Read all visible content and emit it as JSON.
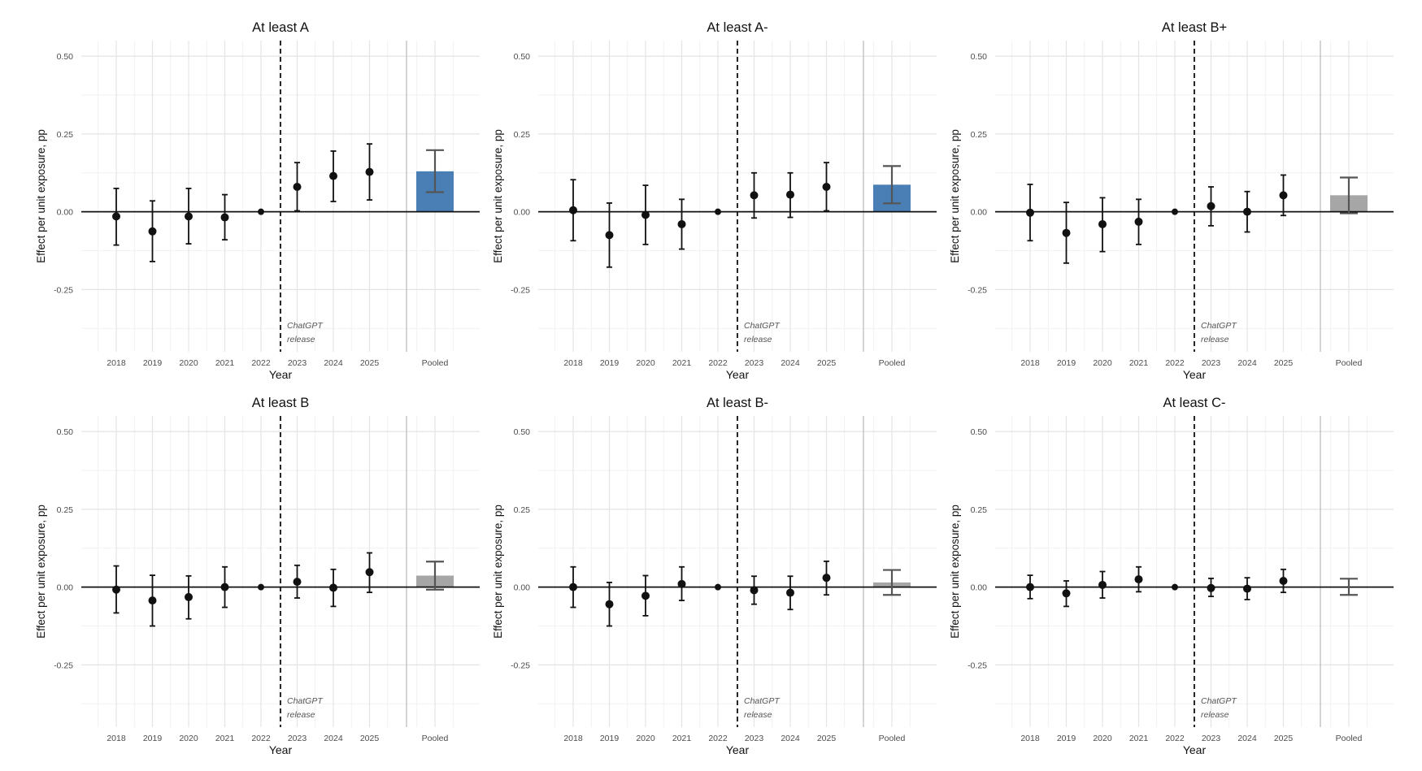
{
  "chart_data": [
    {
      "type": "scatter",
      "title": "At least A",
      "xlabel": "Year",
      "ylabel": "Effect per unit exposure, pp",
      "categories": [
        "2018",
        "2019",
        "2020",
        "2021",
        "2022",
        "2023",
        "2024",
        "2025"
      ],
      "ylim": [
        -0.45,
        0.55
      ],
      "yticks": [
        "0.50",
        "0.25",
        "0.00",
        "-0.25"
      ],
      "estimates": [
        -0.015,
        -0.063,
        -0.015,
        -0.018,
        0.0,
        0.08,
        0.115,
        0.128
      ],
      "ci_low": [
        -0.107,
        -0.16,
        -0.103,
        -0.09,
        0.0,
        0.003,
        0.033,
        0.038
      ],
      "ci_high": [
        0.075,
        0.035,
        0.075,
        0.055,
        0.0,
        0.158,
        0.195,
        0.218
      ],
      "pooled": {
        "label": "Pooled",
        "value": 0.13,
        "ci_low": 0.063,
        "ci_high": 0.198,
        "color": "#4A7FB5"
      },
      "vline_label": [
        "ChatGPT",
        "release"
      ],
      "grid": true
    },
    {
      "type": "scatter",
      "title": "At least A-",
      "xlabel": "Year",
      "ylabel": "Effect per unit exposure, pp",
      "categories": [
        "2018",
        "2019",
        "2020",
        "2021",
        "2022",
        "2023",
        "2024",
        "2025"
      ],
      "ylim": [
        -0.45,
        0.55
      ],
      "yticks": [
        "0.50",
        "0.25",
        "0.00",
        "-0.25"
      ],
      "estimates": [
        0.005,
        -0.075,
        -0.01,
        -0.04,
        0.0,
        0.053,
        0.055,
        0.08
      ],
      "ci_low": [
        -0.093,
        -0.178,
        -0.105,
        -0.12,
        0.0,
        -0.02,
        -0.018,
        0.003
      ],
      "ci_high": [
        0.103,
        0.028,
        0.085,
        0.04,
        0.0,
        0.125,
        0.125,
        0.158
      ],
      "pooled": {
        "label": "Pooled",
        "value": 0.087,
        "ci_low": 0.027,
        "ci_high": 0.147,
        "color": "#4A7FB5"
      },
      "vline_label": [
        "ChatGPT",
        "release"
      ],
      "grid": true
    },
    {
      "type": "scatter",
      "title": "At least B+",
      "xlabel": "Year",
      "ylabel": "Effect per unit exposure, pp",
      "categories": [
        "2018",
        "2019",
        "2020",
        "2021",
        "2022",
        "2023",
        "2024",
        "2025"
      ],
      "ylim": [
        -0.45,
        0.55
      ],
      "yticks": [
        "0.50",
        "0.25",
        "0.00",
        "-0.25"
      ],
      "estimates": [
        -0.003,
        -0.068,
        -0.04,
        -0.032,
        0.0,
        0.018,
        0.0,
        0.053
      ],
      "ci_low": [
        -0.093,
        -0.165,
        -0.128,
        -0.105,
        0.0,
        -0.045,
        -0.065,
        -0.012
      ],
      "ci_high": [
        0.088,
        0.03,
        0.045,
        0.04,
        0.0,
        0.08,
        0.065,
        0.118
      ],
      "pooled": {
        "label": "Pooled",
        "value": 0.053,
        "ci_low": -0.005,
        "ci_high": 0.11,
        "color": "#A6A6A6"
      },
      "vline_label": [
        "ChatGPT",
        "release"
      ],
      "grid": true
    },
    {
      "type": "scatter",
      "title": "At least B",
      "xlabel": "Year",
      "ylabel": "Effect per unit exposure, pp",
      "categories": [
        "2018",
        "2019",
        "2020",
        "2021",
        "2022",
        "2023",
        "2024",
        "2025"
      ],
      "ylim": [
        -0.45,
        0.55
      ],
      "yticks": [
        "0.50",
        "0.25",
        "0.00",
        "-0.25"
      ],
      "estimates": [
        -0.008,
        -0.043,
        -0.032,
        0.0,
        0.0,
        0.017,
        -0.002,
        0.048
      ],
      "ci_low": [
        -0.083,
        -0.125,
        -0.102,
        -0.065,
        0.0,
        -0.035,
        -0.062,
        -0.017
      ],
      "ci_high": [
        0.068,
        0.038,
        0.036,
        0.065,
        0.0,
        0.07,
        0.057,
        0.11
      ],
      "pooled": {
        "label": "Pooled",
        "value": 0.037,
        "ci_low": -0.008,
        "ci_high": 0.082,
        "color": "#A6A6A6"
      },
      "vline_label": [
        "ChatGPT",
        "release"
      ],
      "grid": true
    },
    {
      "type": "scatter",
      "title": "At least B-",
      "xlabel": "Year",
      "ylabel": "Effect per unit exposure, pp",
      "categories": [
        "2018",
        "2019",
        "2020",
        "2021",
        "2022",
        "2023",
        "2024",
        "2025"
      ],
      "ylim": [
        -0.45,
        0.55
      ],
      "yticks": [
        "0.50",
        "0.25",
        "0.00",
        "-0.25"
      ],
      "estimates": [
        0.0,
        -0.055,
        -0.028,
        0.01,
        0.0,
        -0.01,
        -0.018,
        0.03
      ],
      "ci_low": [
        -0.065,
        -0.125,
        -0.092,
        -0.043,
        0.0,
        -0.055,
        -0.072,
        -0.025
      ],
      "ci_high": [
        0.065,
        0.015,
        0.037,
        0.065,
        0.0,
        0.035,
        0.035,
        0.083
      ],
      "pooled": {
        "label": "Pooled",
        "value": 0.015,
        "ci_low": -0.025,
        "ci_high": 0.055,
        "color": "#A6A6A6"
      },
      "vline_label": [
        "ChatGPT",
        "release"
      ],
      "grid": true
    },
    {
      "type": "scatter",
      "title": "At least C-",
      "xlabel": "Year",
      "ylabel": "Effect per unit exposure, pp",
      "categories": [
        "2018",
        "2019",
        "2020",
        "2021",
        "2022",
        "2023",
        "2024",
        "2025"
      ],
      "ylim": [
        -0.45,
        0.55
      ],
      "yticks": [
        "0.50",
        "0.25",
        "0.00",
        "-0.25"
      ],
      "estimates": [
        0.0,
        -0.02,
        0.007,
        0.025,
        0.0,
        -0.003,
        -0.005,
        0.02
      ],
      "ci_low": [
        -0.037,
        -0.062,
        -0.035,
        -0.015,
        0.0,
        -0.03,
        -0.04,
        -0.017
      ],
      "ci_high": [
        0.038,
        0.02,
        0.05,
        0.065,
        0.0,
        0.028,
        0.03,
        0.057
      ],
      "pooled": {
        "label": "Pooled",
        "value": 0.0,
        "ci_low": -0.025,
        "ci_high": 0.027,
        "color": "#A6A6A6"
      },
      "vline_label": [
        "ChatGPT",
        "release"
      ],
      "grid": true
    }
  ]
}
